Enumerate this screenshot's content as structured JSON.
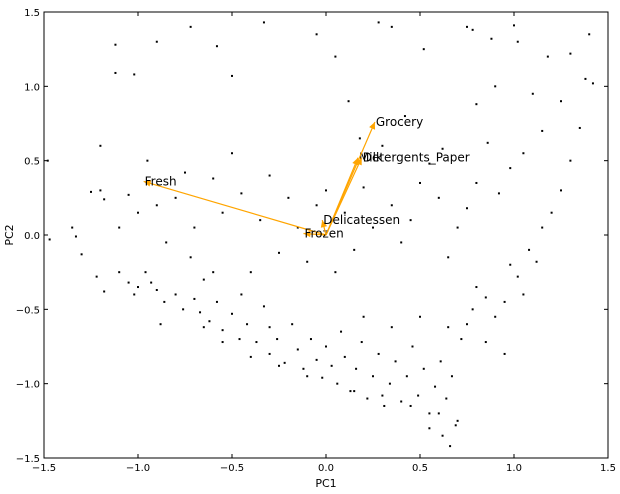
{
  "chart_data": {
    "type": "scatter",
    "title": "",
    "xlabel": "PC1",
    "ylabel": "PC2",
    "xlim": [
      -1.5,
      1.5
    ],
    "ylim": [
      -1.5,
      1.5
    ],
    "xticks": [
      -1.5,
      -1.0,
      -0.5,
      0.0,
      0.5,
      1.0,
      1.5
    ],
    "yticks": [
      -1.5,
      -1.0,
      -0.5,
      0.0,
      0.5,
      1.0,
      1.5
    ],
    "xtick_labels": [
      "−1.5",
      "−1.0",
      "−0.5",
      "0.0",
      "0.5",
      "1.0",
      "1.5"
    ],
    "ytick_labels": [
      "−1.5",
      "−1.0",
      "−0.5",
      "0.0",
      "0.5",
      "1.0",
      "1.5"
    ],
    "grid": false,
    "point_color": "#000000",
    "vector_color": "#ffa500",
    "vectors": [
      {
        "label": "Fresh",
        "x": -0.97,
        "y": 0.36
      },
      {
        "label": "Milk",
        "x": 0.17,
        "y": 0.52
      },
      {
        "label": "Grocery",
        "x": 0.26,
        "y": 0.76
      },
      {
        "label": "Frozen",
        "x": -0.12,
        "y": 0.01
      },
      {
        "label": "Detergents_Paper",
        "x": 0.19,
        "y": 0.52
      },
      {
        "label": "Delicatessen",
        "x": -0.02,
        "y": 0.1
      }
    ],
    "points": [
      [
        -1.47,
        -0.03
      ],
      [
        -1.35,
        0.05
      ],
      [
        -1.33,
        -0.01
      ],
      [
        -1.3,
        -0.13
      ],
      [
        -1.25,
        0.29
      ],
      [
        -1.2,
        0.3
      ],
      [
        -1.18,
        0.24
      ],
      [
        -1.22,
        -0.28
      ],
      [
        -1.18,
        -0.38
      ],
      [
        -1.1,
        -0.25
      ],
      [
        -1.05,
        -0.32
      ],
      [
        -1.02,
        -0.4
      ],
      [
        -1.0,
        -0.35
      ],
      [
        -0.96,
        -0.25
      ],
      [
        -0.93,
        -0.32
      ],
      [
        -0.9,
        -0.37
      ],
      [
        -0.86,
        -0.45
      ],
      [
        -0.8,
        -0.4
      ],
      [
        -0.76,
        -0.5
      ],
      [
        -0.7,
        -0.43
      ],
      [
        -0.67,
        -0.52
      ],
      [
        -0.62,
        -0.58
      ],
      [
        -0.58,
        -0.45
      ],
      [
        -0.55,
        -0.64
      ],
      [
        -0.5,
        -0.53
      ],
      [
        -0.46,
        -0.7
      ],
      [
        -0.42,
        -0.6
      ],
      [
        -0.37,
        -0.72
      ],
      [
        -0.33,
        -0.48
      ],
      [
        -0.3,
        -0.8
      ],
      [
        -0.26,
        -0.7
      ],
      [
        -0.22,
        -0.86
      ],
      [
        -0.18,
        -0.6
      ],
      [
        -0.15,
        -0.77
      ],
      [
        -0.12,
        -0.9
      ],
      [
        -0.08,
        -0.7
      ],
      [
        -0.05,
        -0.84
      ],
      [
        -0.02,
        -0.96
      ],
      [
        0.0,
        -0.75
      ],
      [
        0.03,
        -0.88
      ],
      [
        0.06,
        -1.0
      ],
      [
        0.08,
        -0.65
      ],
      [
        0.1,
        -0.82
      ],
      [
        0.13,
        -1.05
      ],
      [
        0.16,
        -0.9
      ],
      [
        0.19,
        -0.72
      ],
      [
        0.22,
        -1.1
      ],
      [
        0.25,
        -0.95
      ],
      [
        0.28,
        -0.8
      ],
      [
        0.31,
        -1.15
      ],
      [
        0.34,
        -1.0
      ],
      [
        0.37,
        -0.85
      ],
      [
        0.4,
        -1.12
      ],
      [
        0.43,
        -0.95
      ],
      [
        0.46,
        -0.75
      ],
      [
        0.49,
        -1.08
      ],
      [
        0.52,
        -0.9
      ],
      [
        0.55,
        -1.2
      ],
      [
        0.58,
        -1.02
      ],
      [
        0.61,
        -0.85
      ],
      [
        0.64,
        -1.1
      ],
      [
        0.67,
        -0.95
      ],
      [
        0.7,
        -1.25
      ],
      [
        0.62,
        -1.35
      ],
      [
        0.66,
        -1.42
      ],
      [
        0.69,
        -1.28
      ],
      [
        0.55,
        -1.3
      ],
      [
        0.72,
        -0.7
      ],
      [
        0.75,
        -0.6
      ],
      [
        0.78,
        -0.5
      ],
      [
        0.8,
        -0.35
      ],
      [
        0.85,
        -0.42
      ],
      [
        0.9,
        -0.55
      ],
      [
        0.95,
        -0.45
      ],
      [
        0.98,
        -0.2
      ],
      [
        1.02,
        -0.28
      ],
      [
        1.05,
        -0.4
      ],
      [
        1.08,
        -0.1
      ],
      [
        1.12,
        -0.18
      ],
      [
        1.15,
        0.05
      ],
      [
        1.2,
        0.15
      ],
      [
        1.25,
        0.3
      ],
      [
        1.3,
        0.5
      ],
      [
        1.35,
        0.72
      ],
      [
        1.38,
        1.05
      ],
      [
        1.4,
        1.35
      ],
      [
        1.42,
        1.02
      ],
      [
        1.3,
        1.22
      ],
      [
        1.25,
        0.9
      ],
      [
        1.18,
        1.2
      ],
      [
        1.1,
        0.95
      ],
      [
        1.05,
        0.55
      ],
      [
        0.98,
        0.45
      ],
      [
        0.92,
        0.28
      ],
      [
        0.86,
        0.62
      ],
      [
        0.8,
        0.35
      ],
      [
        0.75,
        0.18
      ],
      [
        0.7,
        0.05
      ],
      [
        0.65,
        -0.15
      ],
      [
        0.6,
        0.25
      ],
      [
        0.55,
        0.48
      ],
      [
        0.5,
        0.35
      ],
      [
        0.45,
        0.1
      ],
      [
        0.4,
        -0.05
      ],
      [
        0.35,
        0.2
      ],
      [
        0.3,
        0.6
      ],
      [
        0.25,
        0.05
      ],
      [
        0.2,
        0.32
      ],
      [
        0.15,
        -0.1
      ],
      [
        0.1,
        0.15
      ],
      [
        0.05,
        -0.25
      ],
      [
        0.0,
        0.3
      ],
      [
        -0.05,
        0.2
      ],
      [
        -0.1,
        -0.18
      ],
      [
        -0.15,
        0.05
      ],
      [
        -0.2,
        0.25
      ],
      [
        -0.25,
        -0.12
      ],
      [
        -0.3,
        0.4
      ],
      [
        -0.35,
        0.1
      ],
      [
        -0.4,
        -0.25
      ],
      [
        -0.45,
        0.28
      ],
      [
        -0.5,
        0.55
      ],
      [
        -0.55,
        0.15
      ],
      [
        -0.6,
        0.38
      ],
      [
        -0.65,
        -0.3
      ],
      [
        -0.7,
        0.05
      ],
      [
        -0.75,
        0.42
      ],
      [
        -0.8,
        0.25
      ],
      [
        -0.85,
        -0.05
      ],
      [
        -0.9,
        0.2
      ],
      [
        -0.95,
        0.5
      ],
      [
        -1.0,
        0.15
      ],
      [
        -1.05,
        0.27
      ],
      [
        -1.12,
        1.28
      ],
      [
        -1.12,
        1.09
      ],
      [
        -1.02,
        1.08
      ],
      [
        -0.9,
        1.3
      ],
      [
        -0.72,
        1.4
      ],
      [
        -0.58,
        1.27
      ],
      [
        -0.5,
        1.07
      ],
      [
        -0.33,
        1.43
      ],
      [
        -0.05,
        1.35
      ],
      [
        0.05,
        1.2
      ],
      [
        0.28,
        1.43
      ],
      [
        0.35,
        1.4
      ],
      [
        0.52,
        1.25
      ],
      [
        0.75,
        1.4
      ],
      [
        0.78,
        1.38
      ],
      [
        0.88,
        1.32
      ],
      [
        1.0,
        1.41
      ],
      [
        1.02,
        1.3
      ],
      [
        -1.2,
        0.6
      ],
      [
        -1.48,
        0.5
      ],
      [
        -1.1,
        0.05
      ],
      [
        0.12,
        0.9
      ],
      [
        0.18,
        0.65
      ],
      [
        0.42,
        0.8
      ],
      [
        0.62,
        0.58
      ],
      [
        0.8,
        0.88
      ],
      [
        0.9,
        1.0
      ],
      [
        1.15,
        0.7
      ],
      [
        -0.88,
        -0.6
      ],
      [
        -0.65,
        -0.62
      ],
      [
        -0.55,
        -0.72
      ],
      [
        -0.4,
        -0.82
      ],
      [
        -0.25,
        -0.88
      ],
      [
        -0.1,
        -0.95
      ],
      [
        0.15,
        -1.05
      ],
      [
        0.3,
        -1.08
      ],
      [
        0.45,
        -1.15
      ],
      [
        0.6,
        -1.2
      ],
      [
        0.35,
        -0.62
      ],
      [
        0.2,
        -0.55
      ],
      [
        0.5,
        -0.55
      ],
      [
        0.65,
        -0.62
      ],
      [
        0.85,
        -0.72
      ],
      [
        0.95,
        -0.8
      ],
      [
        -0.3,
        -0.62
      ],
      [
        -0.45,
        -0.4
      ],
      [
        -0.6,
        -0.25
      ],
      [
        -0.72,
        -0.15
      ]
    ]
  }
}
